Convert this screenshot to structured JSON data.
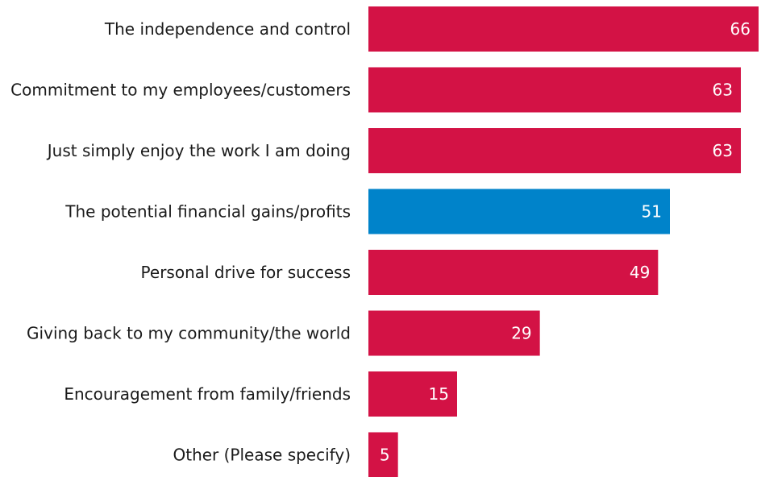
{
  "chart_data": {
    "type": "bar",
    "orientation": "horizontal",
    "title": "",
    "xlabel": "",
    "ylabel": "",
    "categories": [
      "The independence and control",
      "Commitment to my employees/customers",
      "Just simply enjoy the work I am doing",
      "The potential financial gains/profits",
      "Personal drive for success",
      "Giving back to my community/the world",
      "Encouragement from family/friends",
      "Other (Please specify)"
    ],
    "values": [
      66,
      63,
      63,
      51,
      49,
      29,
      15,
      5
    ],
    "xlim": [
      0,
      66
    ],
    "grid": false,
    "colors": {
      "default": "#d31245",
      "highlight": "#0083ca"
    },
    "highlight_index": 3
  }
}
